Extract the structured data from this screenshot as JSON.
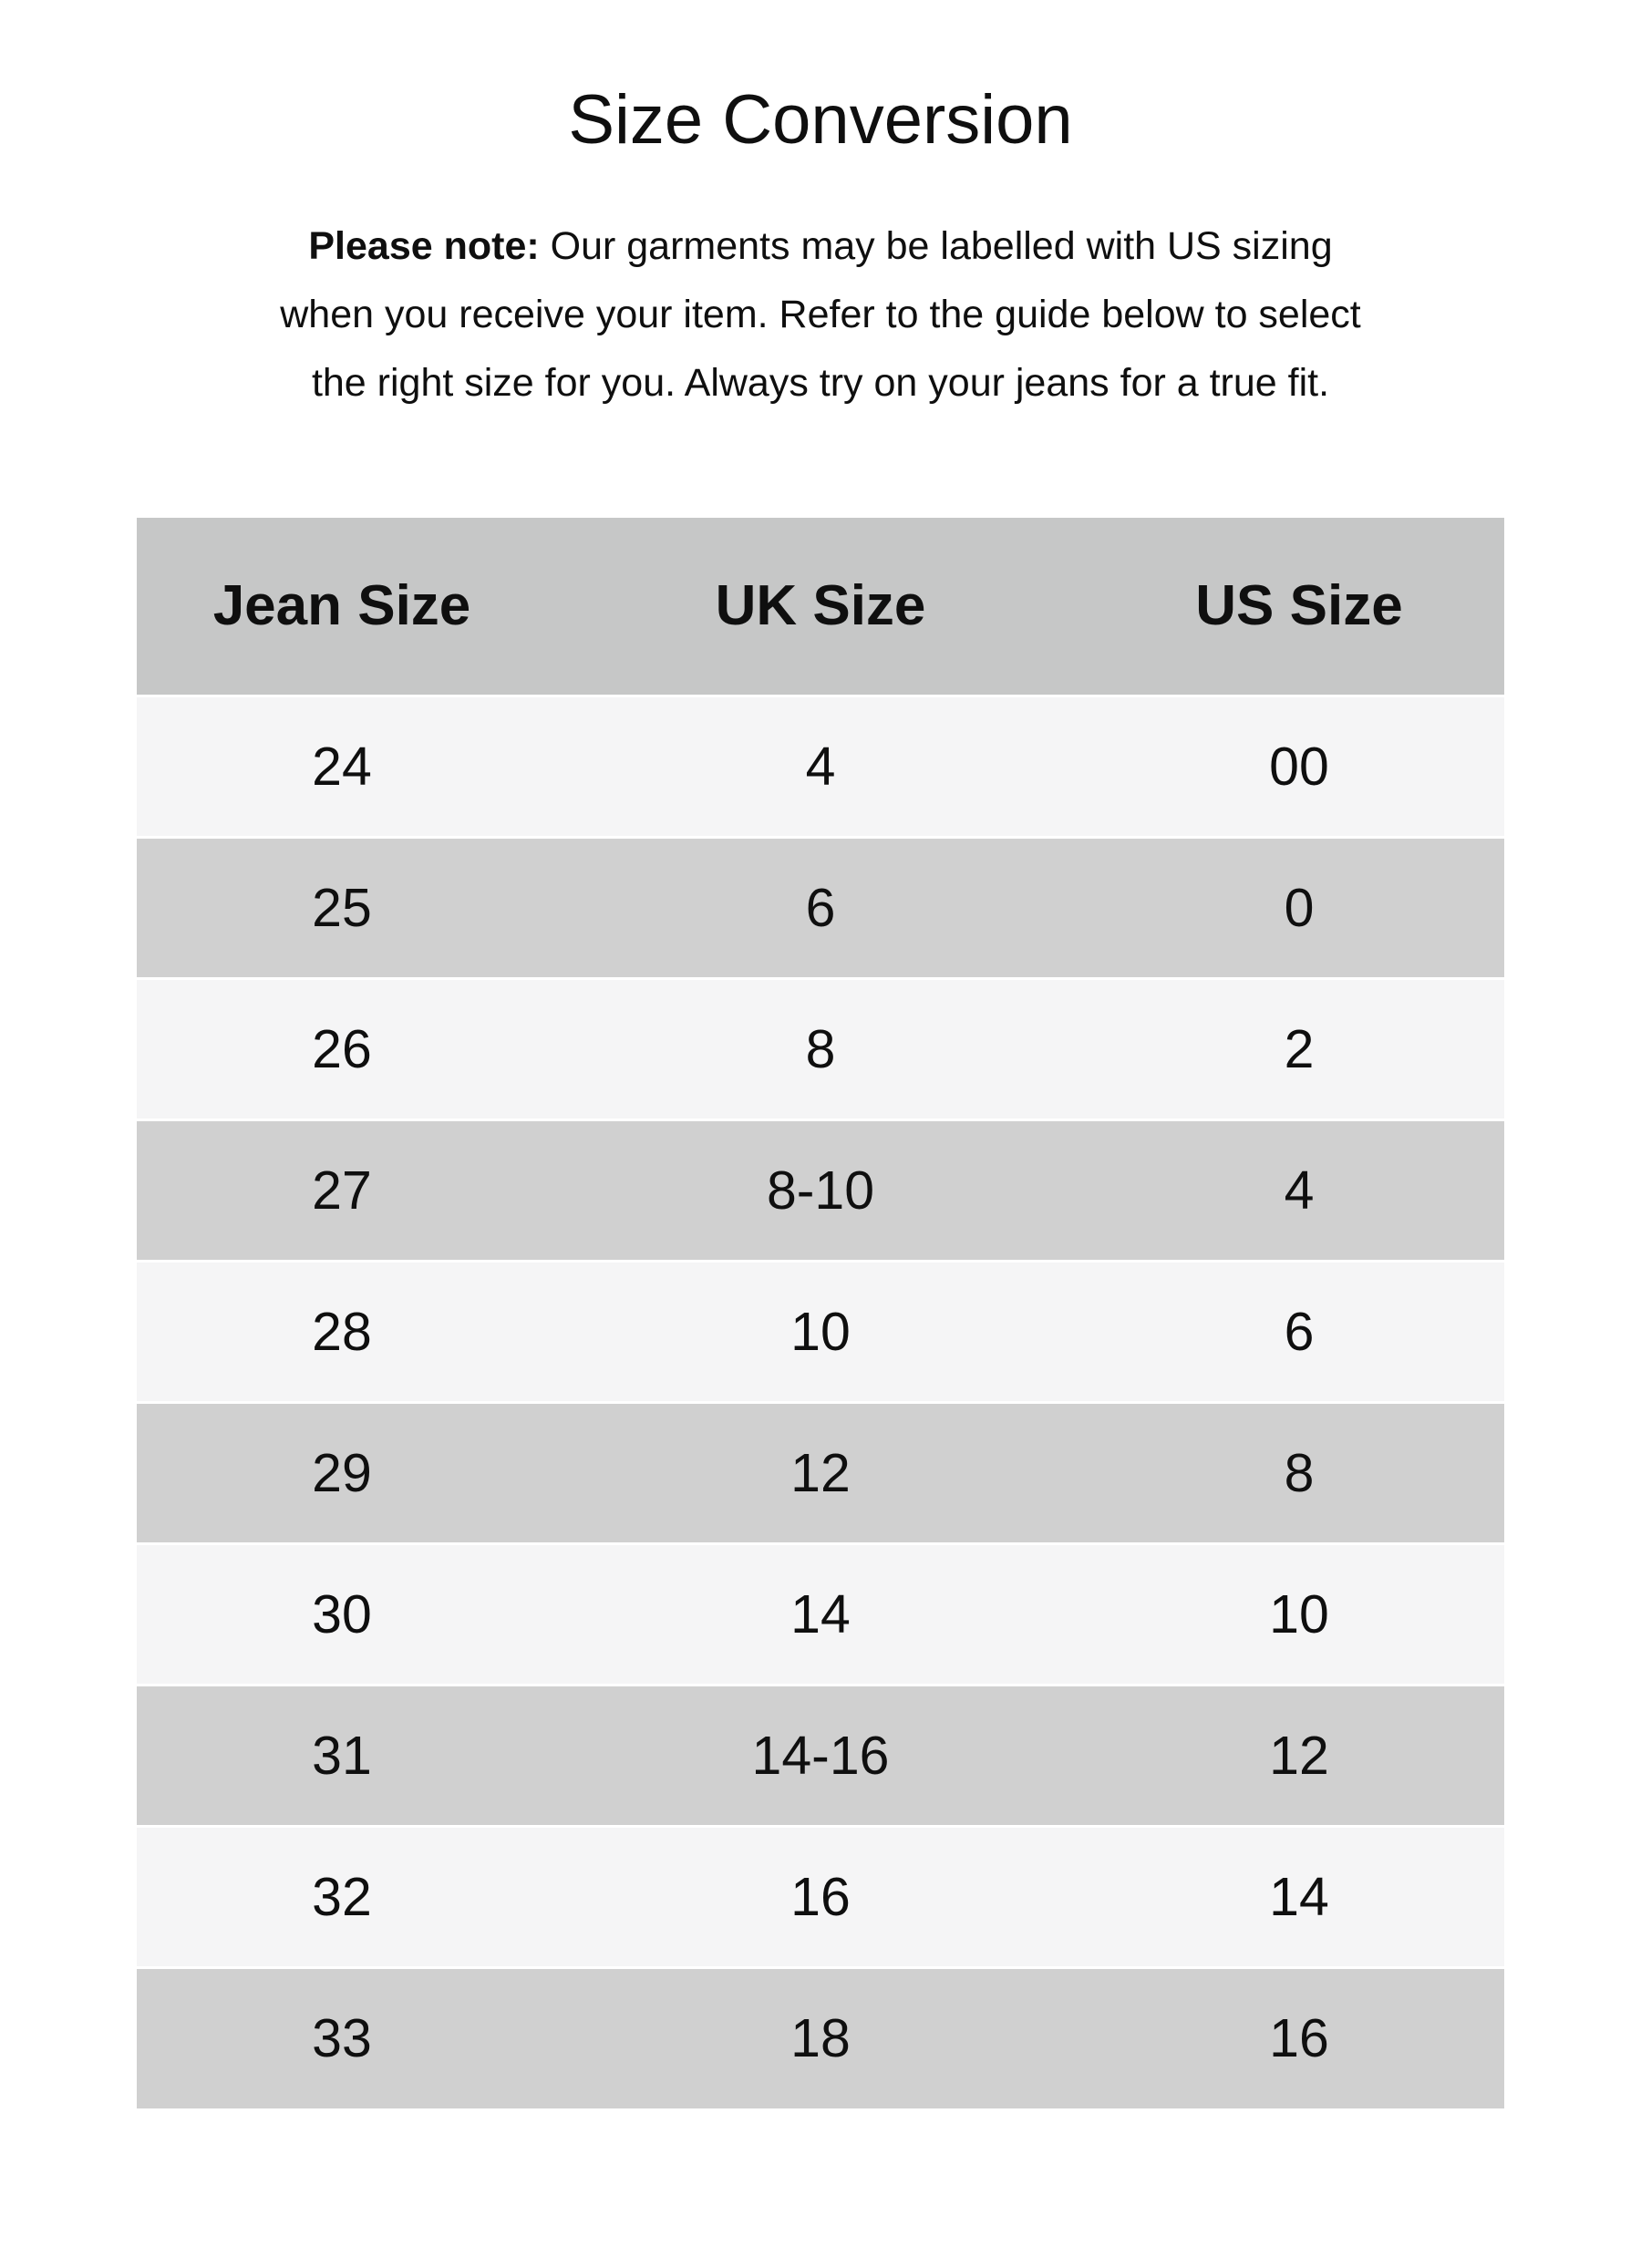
{
  "page": {
    "title": "Size Conversion",
    "colors": {
      "header_bg": "#c6c7c7",
      "row_light": "#f5f5f6",
      "row_dark": "#d0d0d0",
      "text": "#0f0f0f",
      "page_bg": "#ffffff"
    }
  },
  "note": {
    "bold_prefix": "Please note:",
    "line1_rest": " Our garments may be labelled with US sizing",
    "line2": "when you receive your item. Refer to the guide below to select",
    "line3": "the right size for you. Always try on your jeans for a true fit."
  },
  "table": {
    "columns": [
      "Jean Size",
      "UK Size",
      "US Size"
    ],
    "rows": [
      [
        "24",
        "4",
        "00"
      ],
      [
        "25",
        "6",
        "0"
      ],
      [
        "26",
        "8",
        "2"
      ],
      [
        "27",
        "8-10",
        "4"
      ],
      [
        "28",
        "10",
        "6"
      ],
      [
        "29",
        "12",
        "8"
      ],
      [
        "30",
        "14",
        "10"
      ],
      [
        "31",
        "14-16",
        "12"
      ],
      [
        "32",
        "16",
        "14"
      ],
      [
        "33",
        "18",
        "16"
      ]
    ]
  }
}
